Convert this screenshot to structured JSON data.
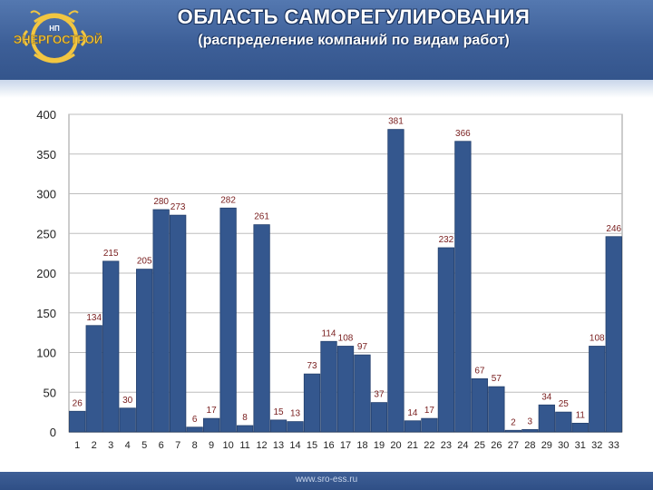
{
  "header": {
    "title": "ОБЛАСТЬ САМОРЕГУЛИРОВАНИЯ",
    "subtitle": "(распределение компаний по видам работ)",
    "logo_text": "ЭНЕРГОСТРОЙ",
    "logo_top_text": "НП"
  },
  "footer": {
    "url": "www.sro-ess.ru"
  },
  "colors": {
    "header": "#3d5f98",
    "bar": "#34578e",
    "bar_edge": "#24406d",
    "value_label": "#7a2020",
    "axis_text": "#222222",
    "logo_gold": "#f2c641"
  },
  "chart_data": {
    "type": "bar",
    "categories": [
      "1",
      "2",
      "3",
      "4",
      "5",
      "6",
      "7",
      "8",
      "9",
      "10",
      "11",
      "12",
      "13",
      "14",
      "15",
      "16",
      "17",
      "18",
      "19",
      "20",
      "21",
      "22",
      "23",
      "24",
      "25",
      "26",
      "27",
      "28",
      "29",
      "30",
      "31",
      "32",
      "33"
    ],
    "values": [
      26,
      134,
      215,
      30,
      205,
      280,
      273,
      6,
      17,
      282,
      8,
      261,
      15,
      13,
      73,
      114,
      108,
      97,
      37,
      381,
      14,
      17,
      232,
      366,
      67,
      57,
      2,
      3,
      34,
      25,
      11,
      108,
      246
    ],
    "ylim": [
      0,
      400
    ],
    "yticks": [
      0,
      50,
      100,
      150,
      200,
      250,
      300,
      350,
      400
    ],
    "grid": true,
    "legend": "none"
  }
}
